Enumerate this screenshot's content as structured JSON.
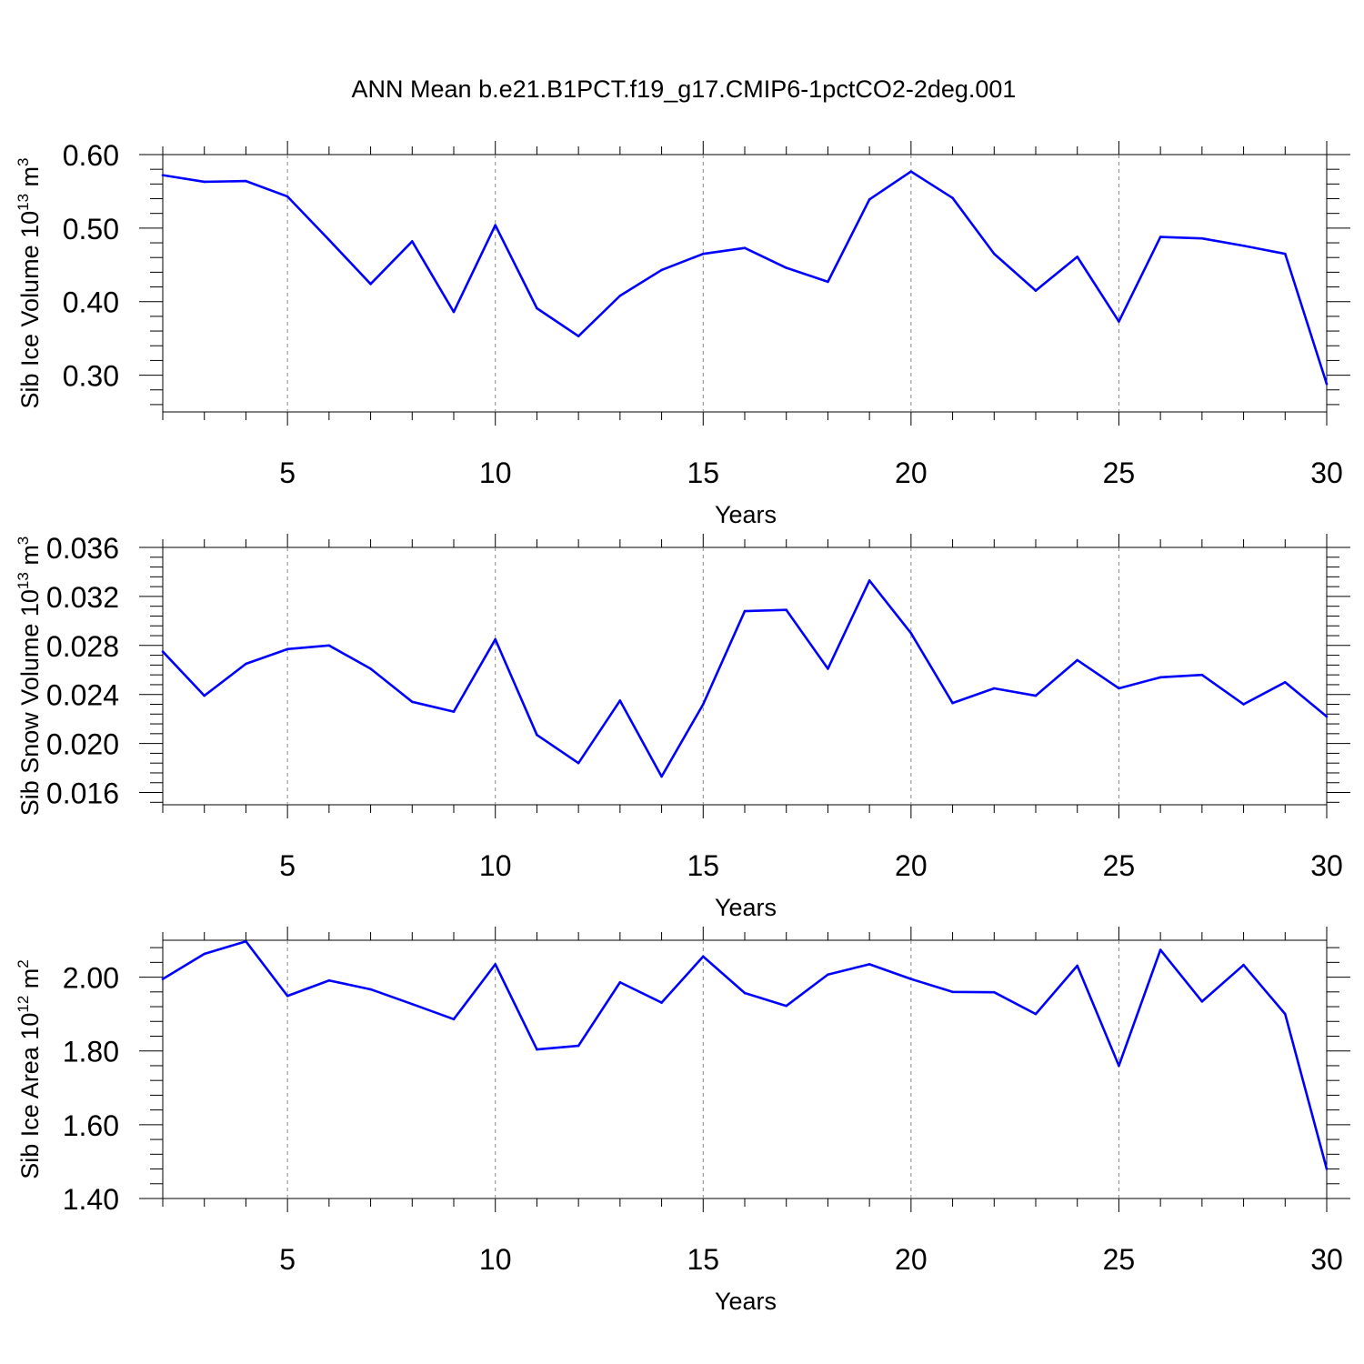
{
  "title": "ANN Mean b.e21.B1PCT.f19_g17.CMIP6-1pctCO2-2deg.001",
  "colors": {
    "line": "#0000ff",
    "grid": "#888888",
    "axis": "#000000"
  },
  "chart_data": [
    {
      "type": "line",
      "xlabel": "Years",
      "ylabel": {
        "text": "Sib Ice Volume 10",
        "exp": "13",
        "unit": " m",
        "unit_exp": "3"
      },
      "xlim": [
        2,
        30
      ],
      "ylim": [
        0.25,
        0.6
      ],
      "yticks": [
        "0.30",
        "0.40",
        "0.50",
        "0.60"
      ],
      "xticks": [
        "5",
        "10",
        "15",
        "20",
        "25",
        "30"
      ],
      "grid": "vertical dashed at major x ticks",
      "x": [
        2,
        3,
        4,
        5,
        6,
        7,
        8,
        9,
        10,
        11,
        12,
        13,
        14,
        15,
        16,
        17,
        18,
        19,
        20,
        21,
        22,
        23,
        24,
        25,
        26,
        27,
        28,
        29,
        30
      ],
      "values": [
        0.572,
        0.563,
        0.564,
        0.543,
        0.484,
        0.424,
        0.482,
        0.386,
        0.504,
        0.391,
        0.353,
        0.408,
        0.443,
        0.465,
        0.473,
        0.446,
        0.427,
        0.539,
        0.577,
        0.541,
        0.465,
        0.415,
        0.461,
        0.373,
        0.488,
        0.486,
        0.476,
        0.465,
        0.288
      ]
    },
    {
      "type": "line",
      "xlabel": "Years",
      "ylabel": {
        "text": "Sib Snow Volume 10",
        "exp": "13",
        "unit": " m",
        "unit_exp": "3"
      },
      "xlim": [
        2,
        30
      ],
      "ylim": [
        0.015,
        0.036
      ],
      "yticks": [
        "0.016",
        "0.020",
        "0.024",
        "0.028",
        "0.032",
        "0.036"
      ],
      "xticks": [
        "5",
        "10",
        "15",
        "20",
        "25",
        "30"
      ],
      "grid": "vertical dashed at major x ticks",
      "x": [
        2,
        3,
        4,
        5,
        6,
        7,
        8,
        9,
        10,
        11,
        12,
        13,
        14,
        15,
        16,
        17,
        18,
        19,
        20,
        21,
        22,
        23,
        24,
        25,
        26,
        27,
        28,
        29,
        30
      ],
      "values": [
        0.0275,
        0.0239,
        0.0265,
        0.0277,
        0.028,
        0.0261,
        0.0234,
        0.0226,
        0.0285,
        0.0207,
        0.0184,
        0.0235,
        0.0173,
        0.0232,
        0.0308,
        0.0309,
        0.0261,
        0.0333,
        0.029,
        0.0233,
        0.0245,
        0.0239,
        0.0268,
        0.0245,
        0.0254,
        0.0256,
        0.0232,
        0.025,
        0.0222
      ]
    },
    {
      "type": "line",
      "xlabel": "Years",
      "ylabel": {
        "text": "Sib Ice Area 10",
        "exp": "12",
        "unit": " m",
        "unit_exp": "2"
      },
      "xlim": [
        2,
        30
      ],
      "ylim": [
        1.4,
        2.1
      ],
      "yticks": [
        "1.40",
        "1.60",
        "1.80",
        "2.00"
      ],
      "xticks": [
        "5",
        "10",
        "15",
        "20",
        "25",
        "30"
      ],
      "grid": "vertical dashed at major x ticks",
      "x": [
        2,
        3,
        4,
        5,
        6,
        7,
        8,
        9,
        10,
        11,
        12,
        13,
        14,
        15,
        16,
        17,
        18,
        19,
        20,
        21,
        22,
        23,
        24,
        25,
        26,
        27,
        28,
        29,
        30
      ],
      "values": [
        1.995,
        2.063,
        2.097,
        1.949,
        1.991,
        1.967,
        1.927,
        1.886,
        2.035,
        1.804,
        1.814,
        1.986,
        1.931,
        2.056,
        1.957,
        1.922,
        2.007,
        2.035,
        1.995,
        1.96,
        1.959,
        1.9,
        2.031,
        1.76,
        2.074,
        1.934,
        2.033,
        1.9,
        1.48
      ]
    }
  ]
}
